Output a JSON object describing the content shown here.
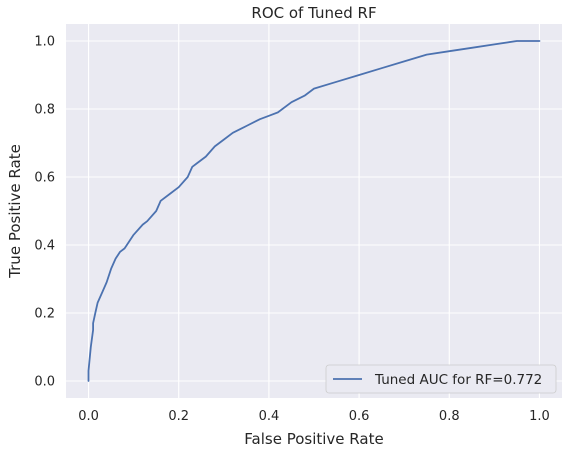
{
  "chart_data": {
    "type": "line",
    "title": "ROC of Tuned RF",
    "xlabel": "False Positive Rate",
    "ylabel": "True Positive Rate",
    "xlim": [
      -0.05,
      1.05
    ],
    "ylim": [
      -0.05,
      1.05
    ],
    "x_ticks": [
      0.0,
      0.2,
      0.4,
      0.6,
      0.8,
      1.0
    ],
    "y_ticks": [
      0.0,
      0.2,
      0.4,
      0.6,
      0.8,
      1.0
    ],
    "x_tick_labels": [
      "0.0",
      "0.2",
      "0.4",
      "0.6",
      "0.8",
      "1.0"
    ],
    "y_tick_labels": [
      "0.0",
      "0.2",
      "0.4",
      "0.6",
      "0.8",
      "1.0"
    ],
    "grid": true,
    "legend_position": "lower-right",
    "series": [
      {
        "name": "Tuned AUC for RF=0.772",
        "color": "#4c72b0",
        "x": [
          0.0,
          0.0,
          0.005,
          0.01,
          0.01,
          0.015,
          0.02,
          0.03,
          0.04,
          0.05,
          0.06,
          0.07,
          0.08,
          0.1,
          0.12,
          0.13,
          0.15,
          0.16,
          0.18,
          0.2,
          0.22,
          0.23,
          0.24,
          0.26,
          0.28,
          0.3,
          0.32,
          0.35,
          0.38,
          0.4,
          0.42,
          0.45,
          0.48,
          0.5,
          0.55,
          0.6,
          0.65,
          0.7,
          0.75,
          0.8,
          0.85,
          0.9,
          0.95,
          1.0
        ],
        "y": [
          0.0,
          0.03,
          0.1,
          0.15,
          0.17,
          0.2,
          0.23,
          0.26,
          0.29,
          0.33,
          0.36,
          0.38,
          0.39,
          0.43,
          0.46,
          0.47,
          0.5,
          0.53,
          0.55,
          0.57,
          0.6,
          0.63,
          0.64,
          0.66,
          0.69,
          0.71,
          0.73,
          0.75,
          0.77,
          0.78,
          0.79,
          0.82,
          0.84,
          0.86,
          0.88,
          0.9,
          0.92,
          0.94,
          0.96,
          0.97,
          0.98,
          0.99,
          1.0,
          1.0
        ]
      }
    ]
  }
}
